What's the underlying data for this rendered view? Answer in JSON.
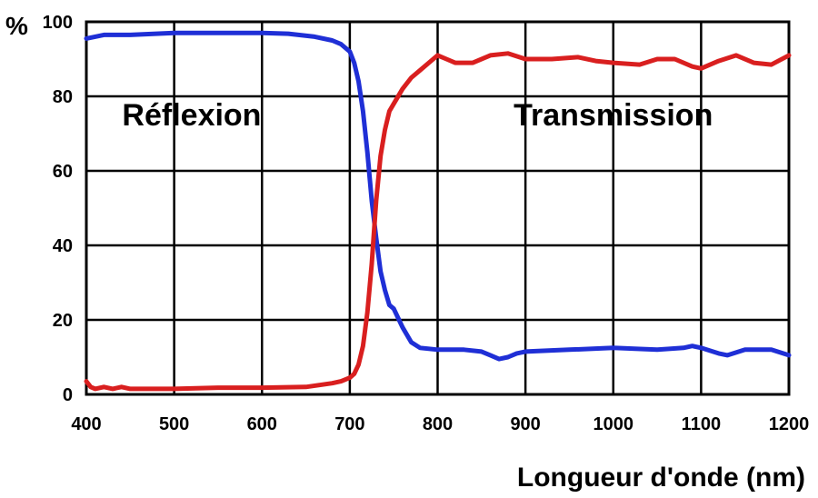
{
  "chart_data": {
    "type": "line",
    "ylabel": "%",
    "xlabel": "Longueur d'onde (nm)",
    "xlim": [
      400,
      1200
    ],
    "ylim": [
      0,
      100
    ],
    "grid": true,
    "x_ticks": [
      400,
      500,
      600,
      700,
      800,
      900,
      1000,
      1100,
      1200
    ],
    "y_ticks": [
      0,
      20,
      40,
      60,
      80,
      100
    ],
    "annotations": [
      {
        "text": "Réflexion",
        "x": 520,
        "y": 70
      },
      {
        "text": "Transmission",
        "x": 1000,
        "y": 70
      }
    ],
    "series": [
      {
        "name": "Réflexion",
        "color": "#1f2fd6",
        "x": [
          400,
          420,
          450,
          500,
          550,
          600,
          630,
          660,
          680,
          690,
          700,
          705,
          710,
          715,
          720,
          725,
          730,
          735,
          740,
          745,
          750,
          760,
          770,
          780,
          800,
          830,
          850,
          860,
          870,
          880,
          890,
          900,
          950,
          1000,
          1050,
          1080,
          1090,
          1100,
          1120,
          1130,
          1150,
          1180,
          1200
        ],
        "y": [
          95.5,
          96.5,
          96.5,
          97,
          97,
          97,
          96.8,
          96,
          95,
          94,
          92,
          89,
          84,
          76,
          65,
          52,
          42,
          33,
          28,
          24,
          23,
          18,
          14,
          12.5,
          12,
          12,
          11.5,
          10.5,
          9.5,
          10,
          11,
          11.5,
          12,
          12.5,
          12,
          12.5,
          13,
          12.5,
          11,
          10.5,
          12,
          12,
          10.5
        ]
      },
      {
        "name": "Transmission",
        "color": "#d91f1f",
        "x": [
          400,
          405,
          410,
          420,
          430,
          440,
          450,
          500,
          550,
          600,
          650,
          680,
          690,
          700,
          705,
          710,
          715,
          720,
          725,
          730,
          735,
          740,
          745,
          750,
          760,
          770,
          780,
          790,
          800,
          810,
          820,
          840,
          860,
          880,
          900,
          930,
          960,
          980,
          1000,
          1030,
          1050,
          1070,
          1090,
          1100,
          1120,
          1140,
          1160,
          1180,
          1200
        ],
        "y": [
          3.5,
          2,
          1.5,
          2,
          1.5,
          2,
          1.5,
          1.5,
          1.8,
          1.8,
          2,
          3,
          3.5,
          4.5,
          5.5,
          8,
          13,
          22,
          35,
          52,
          64,
          71,
          76,
          78,
          82,
          85,
          87,
          89,
          91,
          90,
          89,
          89,
          91,
          91.5,
          90,
          90,
          90.5,
          89.5,
          89,
          88.5,
          90,
          90,
          88,
          87.5,
          89.5,
          91,
          89,
          88.5,
          91
        ]
      }
    ]
  }
}
